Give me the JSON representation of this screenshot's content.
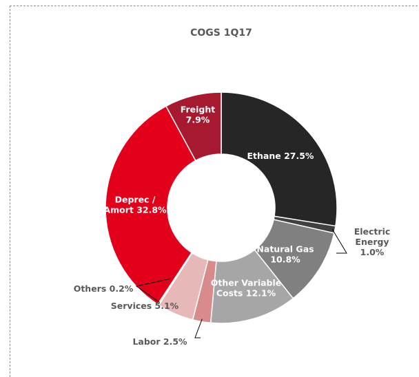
{
  "chart_data": {
    "type": "pie",
    "title": "COGS 1Q17",
    "slices": [
      {
        "name": "Ethane",
        "value": 27.5,
        "label_lines": [
          "Ethane 27.5%"
        ],
        "color": "#262626",
        "label_color": "#ffffff"
      },
      {
        "name": "Electric Energy",
        "value": 1.0,
        "label_lines": [
          "Electric",
          "Energy",
          "1.0%"
        ],
        "color": "#404040",
        "label_color": "#595959"
      },
      {
        "name": "Natural Gas",
        "value": 10.8,
        "label_lines": [
          "Natural Gas",
          "10.8%"
        ],
        "color": "#808080",
        "label_color": "#ffffff"
      },
      {
        "name": "Other Variable Costs",
        "value": 12.1,
        "label_lines": [
          "Other Variable",
          "Costs 12.1%"
        ],
        "color": "#a6a6a6",
        "label_color": "#ffffff"
      },
      {
        "name": "Labor",
        "value": 2.5,
        "label_lines": [
          "Labor 2.5%"
        ],
        "color": "#d98a8a",
        "label_color": "#595959"
      },
      {
        "name": "Services",
        "value": 5.1,
        "label_lines": [
          "Services 5.1%"
        ],
        "color": "#e6b8b7",
        "label_color": "#595959"
      },
      {
        "name": "Others",
        "value": 0.2,
        "label_lines": [
          "Others 0.2%"
        ],
        "color": "#f2dcdb",
        "label_color": "#595959"
      },
      {
        "name": "Deprec / Amort",
        "value": 32.8,
        "label_lines": [
          "Deprec /",
          "Amort 32.8%"
        ],
        "color": "#e2001a",
        "label_color": "#ffffff"
      },
      {
        "name": "Freight",
        "value": 7.9,
        "label_lines": [
          "Freight",
          "7.9%"
        ],
        "color": "#a6192e",
        "label_color": "#ffffff"
      }
    ],
    "hole": "donut",
    "legend": "none"
  }
}
